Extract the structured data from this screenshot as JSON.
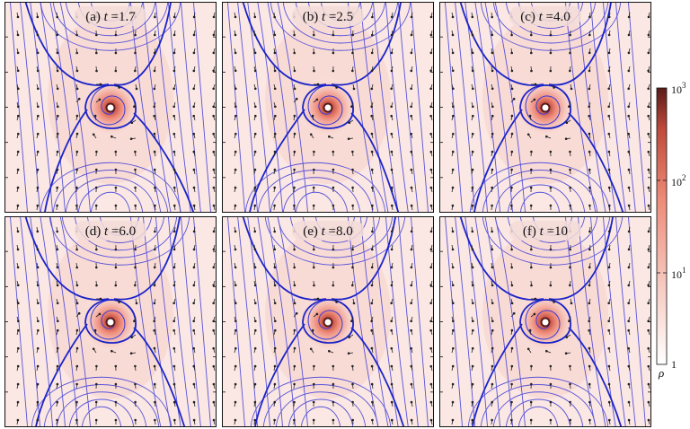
{
  "figure": {
    "panels": [
      {
        "letter": "(a)",
        "var": "t",
        "eq": "=1.7"
      },
      {
        "letter": "(b)",
        "var": "t",
        "eq": "=2.5"
      },
      {
        "letter": "(c)",
        "var": "t",
        "eq": "=4.0"
      },
      {
        "letter": "(d)",
        "var": "t",
        "eq": "=6.0"
      },
      {
        "letter": "(e)",
        "var": "t",
        "eq": "=8.0"
      },
      {
        "letter": "(f)",
        "var": "t",
        "eq": "=10"
      }
    ],
    "colorbar": {
      "symbol": "ρ",
      "ticks": [
        {
          "base": "10",
          "exp": "3"
        },
        {
          "base": "10",
          "exp": "2"
        },
        {
          "base": "10",
          "exp": "1"
        },
        {
          "base": "1",
          "exp": ""
        }
      ],
      "colors": [
        "#ffffff",
        "#f6c7bd",
        "#ee8a78",
        "#c04a3c",
        "#5a1a1a"
      ]
    },
    "colors": {
      "streamline": "#3a3ad8",
      "separatrix": "#1b24c8",
      "arrow": "#222222",
      "background": "#fbe7e3"
    }
  }
}
